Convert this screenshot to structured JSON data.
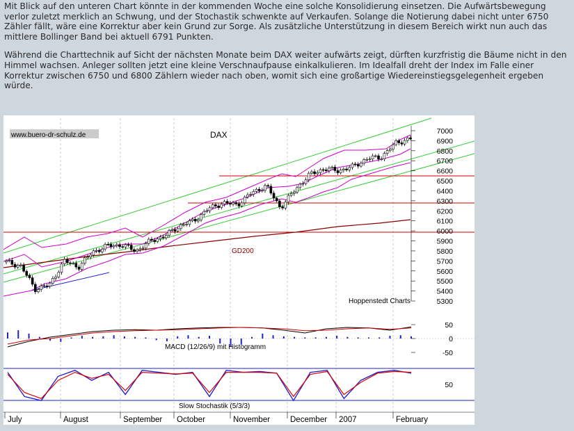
{
  "article": {
    "paragraphs": [
      "Mit Blick auf den unteren Chart könnte in der kommenden Woche eine solche Konsolidierung einsetzen. Die Aufwärtsbewegung verlor zuletzt merklich an Schwung, und der Stochastik schwenkte auf Verkaufen. Solange die Notierung dabei nicht unter 6750 Zähler fällt, wäre eine Korrektur aber kein Grund zur Sorge. Als zusätzliche Unterstützung in diesem Bereich wirkt nun auch das mittlere Bollinger Band bei aktuell 6791 Punkten.",
      "Während die Charttechnik auf Sicht der nächsten Monate beim DAX weiter aufwärts zeigt, dürften kurzfristig die Bäume nicht in den Himmel wachsen. Anleger sollten jetzt eine kleine Verschnaufpause einkalkulieren. Im Idealfall dreht der Index im Falle einer Korrektur zwischen 6750 und 6800 Zählern wieder nach oben, womit sich eine großartige Wiedereinstiegsgelegenheit ergeben würde."
    ]
  },
  "chart": {
    "source_label": "www.buero-dr-schulz.de",
    "title": "DAX",
    "credit": "Hoppenstedt Charts",
    "gd200_label": "GD200",
    "macd_label": "MACD (12/26/9) mit Histogramm",
    "stoch_label": "Slow Stochastik (5/3/3)"
  },
  "chart_data": {
    "type": "line",
    "title": "DAX",
    "price_axis": {
      "ylim": [
        5200,
        7100
      ],
      "ticks": [
        7000,
        6900,
        6800,
        6700,
        6600,
        6500,
        6400,
        6300,
        6200,
        6100,
        6000,
        5900,
        5800,
        5700,
        5600,
        5500,
        5400,
        5300
      ]
    },
    "months": [
      "July",
      "August",
      "September",
      "October",
      "November",
      "December",
      "2007",
      "February"
    ],
    "price_series": [
      {
        "week": 0,
        "close": 5690
      },
      {
        "week": 1,
        "close": 5650
      },
      {
        "week": 2,
        "close": 5420
      },
      {
        "week": 3,
        "close": 5460
      },
      {
        "week": 4,
        "close": 5700
      },
      {
        "week": 5,
        "close": 5640
      },
      {
        "week": 6,
        "close": 5790
      },
      {
        "week": 7,
        "close": 5850
      },
      {
        "week": 8,
        "close": 5860
      },
      {
        "week": 9,
        "close": 5800
      },
      {
        "week": 10,
        "close": 5900
      },
      {
        "week": 11,
        "close": 5950
      },
      {
        "week": 12,
        "close": 6050
      },
      {
        "week": 13,
        "close": 6100
      },
      {
        "week": 14,
        "close": 6220
      },
      {
        "week": 15,
        "close": 6280
      },
      {
        "week": 16,
        "close": 6260
      },
      {
        "week": 17,
        "close": 6380
      },
      {
        "week": 18,
        "close": 6450
      },
      {
        "week": 19,
        "close": 6230
      },
      {
        "week": 20,
        "close": 6410
      },
      {
        "week": 21,
        "close": 6560
      },
      {
        "week": 22,
        "close": 6620
      },
      {
        "week": 23,
        "close": 6600
      },
      {
        "week": 24,
        "close": 6640
      },
      {
        "week": 25,
        "close": 6720
      },
      {
        "week": 26,
        "close": 6740
      },
      {
        "week": 27,
        "close": 6880
      },
      {
        "week": 28,
        "close": 6920
      }
    ],
    "horizontal_levels": [
      6500,
      6220,
      5930
    ],
    "gd200": {
      "from": 5660,
      "to": 6060
    },
    "macd": {
      "ticks": [
        50,
        0,
        -50
      ],
      "macd_line": [
        -30,
        -10,
        5,
        15,
        25,
        30,
        32,
        30,
        35,
        38,
        40,
        40,
        38,
        30,
        20,
        35,
        40,
        38,
        30,
        42
      ],
      "signal_line": [
        -20,
        -5,
        0,
        10,
        20,
        25,
        28,
        30,
        32,
        35,
        38,
        40,
        38,
        35,
        28,
        30,
        35,
        38,
        33,
        38
      ],
      "histogram": [
        22,
        30,
        18,
        6,
        -8,
        -12,
        4,
        10,
        6,
        8,
        12,
        8,
        6,
        4,
        -6,
        -10,
        8,
        12,
        6,
        10,
        -18,
        -30,
        -22,
        6,
        18,
        12,
        8,
        6,
        4,
        4,
        6,
        10,
        6,
        4,
        4,
        4,
        10,
        12,
        8
      ]
    },
    "stochastic": {
      "ticks": [
        50
      ],
      "k": [
        80,
        20,
        10,
        70,
        85,
        60,
        80,
        25,
        85,
        80,
        75,
        80,
        20,
        85,
        80,
        82,
        78,
        10,
        80,
        85,
        15,
        60,
        80,
        85,
        78
      ],
      "d": [
        75,
        30,
        15,
        60,
        80,
        65,
        75,
        35,
        80,
        78,
        76,
        78,
        30,
        80,
        80,
        80,
        78,
        20,
        75,
        82,
        25,
        55,
        78,
        82,
        80
      ]
    }
  }
}
